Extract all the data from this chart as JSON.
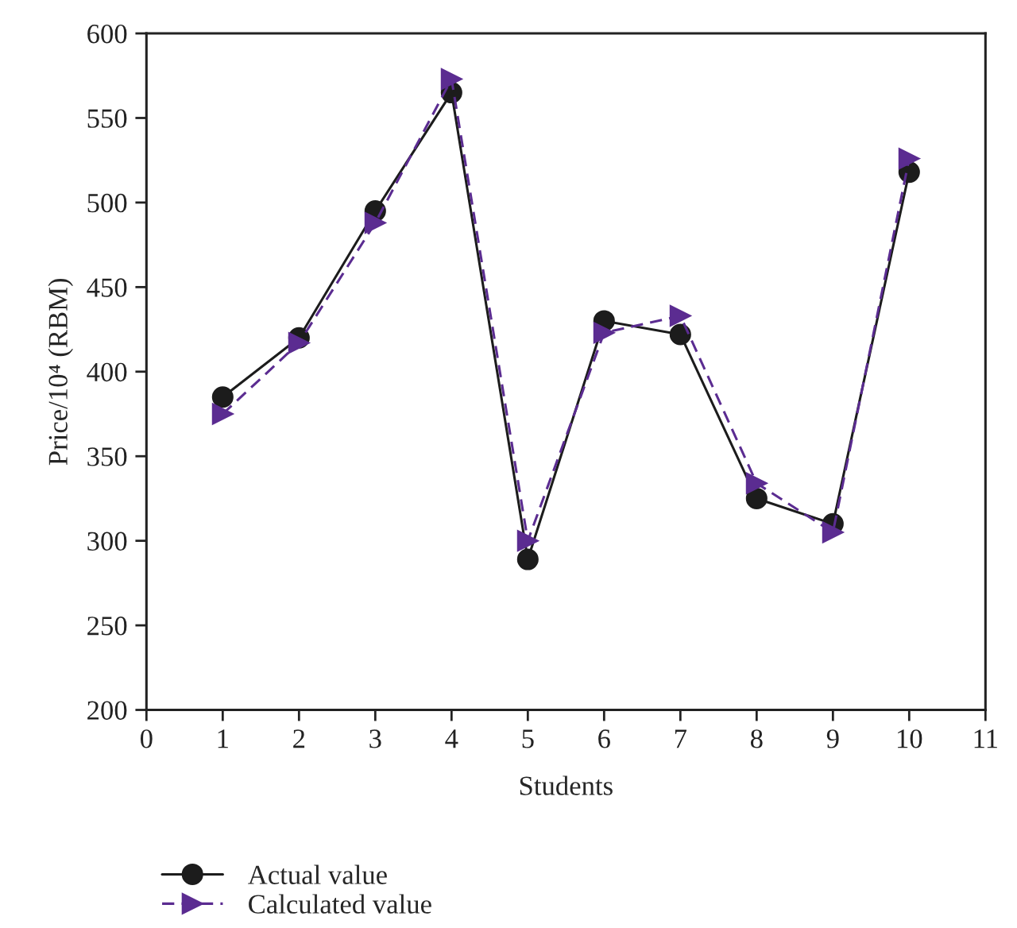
{
  "chart_data": {
    "type": "line",
    "xlabel": "Students",
    "ylabel": "Price/10⁴ (RBM)",
    "x": [
      1,
      2,
      3,
      4,
      5,
      6,
      7,
      8,
      9,
      10
    ],
    "series": [
      {
        "name": "Actual value",
        "color": "#1c1c1c",
        "marker": "circle",
        "line_style": "solid",
        "values": [
          385,
          420,
          495,
          565,
          289,
          430,
          422,
          325,
          310,
          518
        ]
      },
      {
        "name": "Calculated value",
        "color": "#5b2c91",
        "marker": "triangle",
        "line_style": "dashed",
        "values": [
          375,
          417,
          488,
          573,
          300,
          423,
          433,
          334,
          305,
          526
        ]
      }
    ],
    "xlim": [
      0,
      11
    ],
    "xticks": [
      0,
      1,
      2,
      3,
      4,
      5,
      6,
      7,
      8,
      9,
      10,
      11
    ],
    "ylim": [
      200,
      600
    ],
    "yticks": [
      200,
      250,
      300,
      350,
      400,
      450,
      500,
      550,
      600
    ],
    "legend": "bottom left"
  }
}
